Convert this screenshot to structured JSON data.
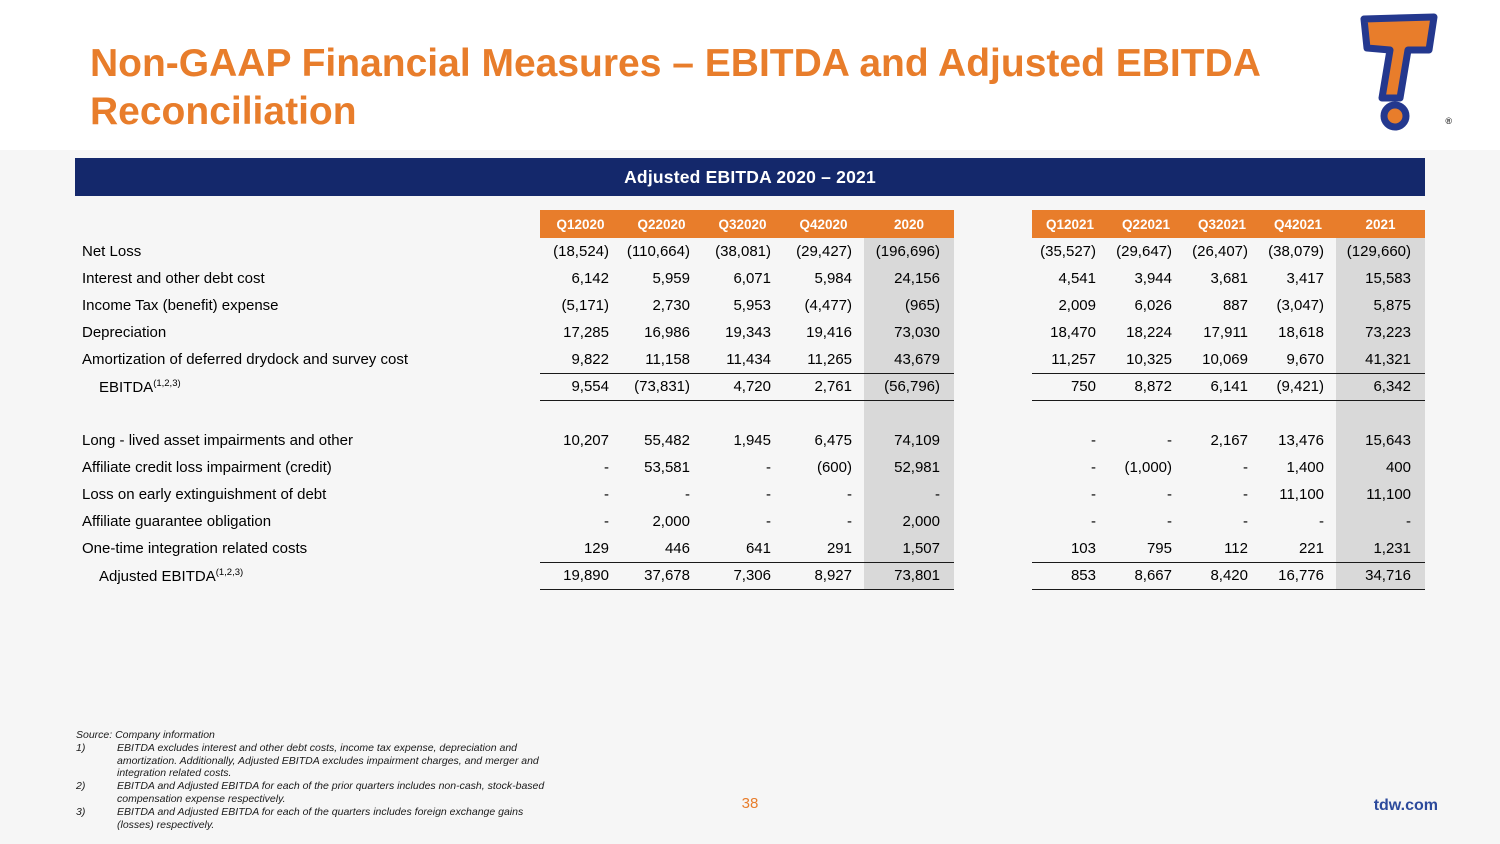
{
  "slide": {
    "title": "Non-GAAP Financial Measures – EBITDA and Adjusted EBITDA Reconciliation",
    "banner": "Adjusted EBITDA 2020 – 2021",
    "page_number": "38",
    "site": "tdw.com"
  },
  "colors": {
    "orange": "#E87D2B",
    "navy": "#14286B",
    "shade": "#D9D9D9",
    "link": "#2C4A9C",
    "logo-navy": "#24388E"
  },
  "table": {
    "left_headers": [
      "Q12020",
      "Q22020",
      "Q32020",
      "Q42020",
      "2020"
    ],
    "right_headers": [
      "Q12021",
      "Q22021",
      "Q32021",
      "Q42021",
      "2021"
    ],
    "rows": [
      {
        "label": "Net Loss",
        "left": [
          "(18,524)",
          "(110,664)",
          "(38,081)",
          "(29,427)",
          "(196,696)"
        ],
        "right": [
          "(35,527)",
          "(29,647)",
          "(26,407)",
          "(38,079)",
          "(129,660)"
        ]
      },
      {
        "label": "Interest and other debt cost",
        "left": [
          "6,142",
          "5,959",
          "6,071",
          "5,984",
          "24,156"
        ],
        "right": [
          "4,541",
          "3,944",
          "3,681",
          "3,417",
          "15,583"
        ]
      },
      {
        "label": "Income Tax (benefit) expense",
        "left": [
          "(5,171)",
          "2,730",
          "5,953",
          "(4,477)",
          "(965)"
        ],
        "right": [
          "2,009",
          "6,026",
          "887",
          "(3,047)",
          "5,875"
        ]
      },
      {
        "label": "Depreciation",
        "left": [
          "17,285",
          "16,986",
          "19,343",
          "19,416",
          "73,030"
        ],
        "right": [
          "18,470",
          "18,224",
          "17,911",
          "18,618",
          "73,223"
        ]
      },
      {
        "label": "Amortization of deferred drydock and survey cost",
        "rule": true,
        "left": [
          "9,822",
          "11,158",
          "11,434",
          "11,265",
          "43,679"
        ],
        "right": [
          "11,257",
          "10,325",
          "10,069",
          "9,670",
          "41,321"
        ]
      },
      {
        "label": "EBITDA",
        "sup": "(1,2,3)",
        "indent": true,
        "rule": true,
        "left": [
          "9,554",
          "(73,831)",
          "4,720",
          "2,761",
          "(56,796)"
        ],
        "right": [
          "750",
          "8,872",
          "6,141",
          "(9,421)",
          "6,342"
        ]
      },
      {
        "blank": true,
        "label": "",
        "left": [
          "",
          "",
          "",
          "",
          ""
        ],
        "right": [
          "",
          "",
          "",
          "",
          ""
        ]
      },
      {
        "label": "Long - lived asset impairments and other",
        "left": [
          "10,207",
          "55,482",
          "1,945",
          "6,475",
          "74,109"
        ],
        "right": [
          "-",
          "-",
          "2,167",
          "13,476",
          "15,643"
        ]
      },
      {
        "label": "Affiliate credit loss impairment (credit)",
        "left": [
          "-",
          "53,581",
          "-",
          "(600)",
          "52,981"
        ],
        "right": [
          "-",
          "(1,000)",
          "-",
          "1,400",
          "400"
        ]
      },
      {
        "label": "Loss on early extinguishment of debt",
        "left": [
          "-",
          "-",
          "-",
          "-",
          "-"
        ],
        "right": [
          "-",
          "-",
          "-",
          "11,100",
          "11,100"
        ]
      },
      {
        "label": "Affiliate guarantee obligation",
        "left": [
          "-",
          "2,000",
          "-",
          "-",
          "2,000"
        ],
        "right": [
          "-",
          "-",
          "-",
          "-",
          "-"
        ]
      },
      {
        "label": "One-time integration related costs",
        "rule": true,
        "left": [
          "129",
          "446",
          "641",
          "291",
          "1,507"
        ],
        "right": [
          "103",
          "795",
          "112",
          "221",
          "1,231"
        ]
      },
      {
        "label": "Adjusted EBITDA",
        "sup": "(1,2,3)",
        "indent": true,
        "rule": true,
        "left": [
          "19,890",
          "37,678",
          "7,306",
          "8,927",
          "73,801"
        ],
        "right": [
          "853",
          "8,667",
          "8,420",
          "16,776",
          "34,716"
        ]
      }
    ]
  },
  "footnotes": {
    "source": "Source: Company information",
    "items": [
      {
        "num": "1)",
        "text": "EBITDA excludes interest and other debt costs, income tax expense, depreciation and amortization. Additionally, Adjusted EBITDA excludes impairment charges, and merger and integration related costs."
      },
      {
        "num": "2)",
        "text": "EBITDA and Adjusted EBITDA for each of the prior quarters includes non-cash, stock-based compensation expense respectively."
      },
      {
        "num": "3)",
        "text": "EBITDA and Adjusted EBITDA for each of the quarters includes foreign exchange gains (losses) respectively."
      }
    ]
  }
}
